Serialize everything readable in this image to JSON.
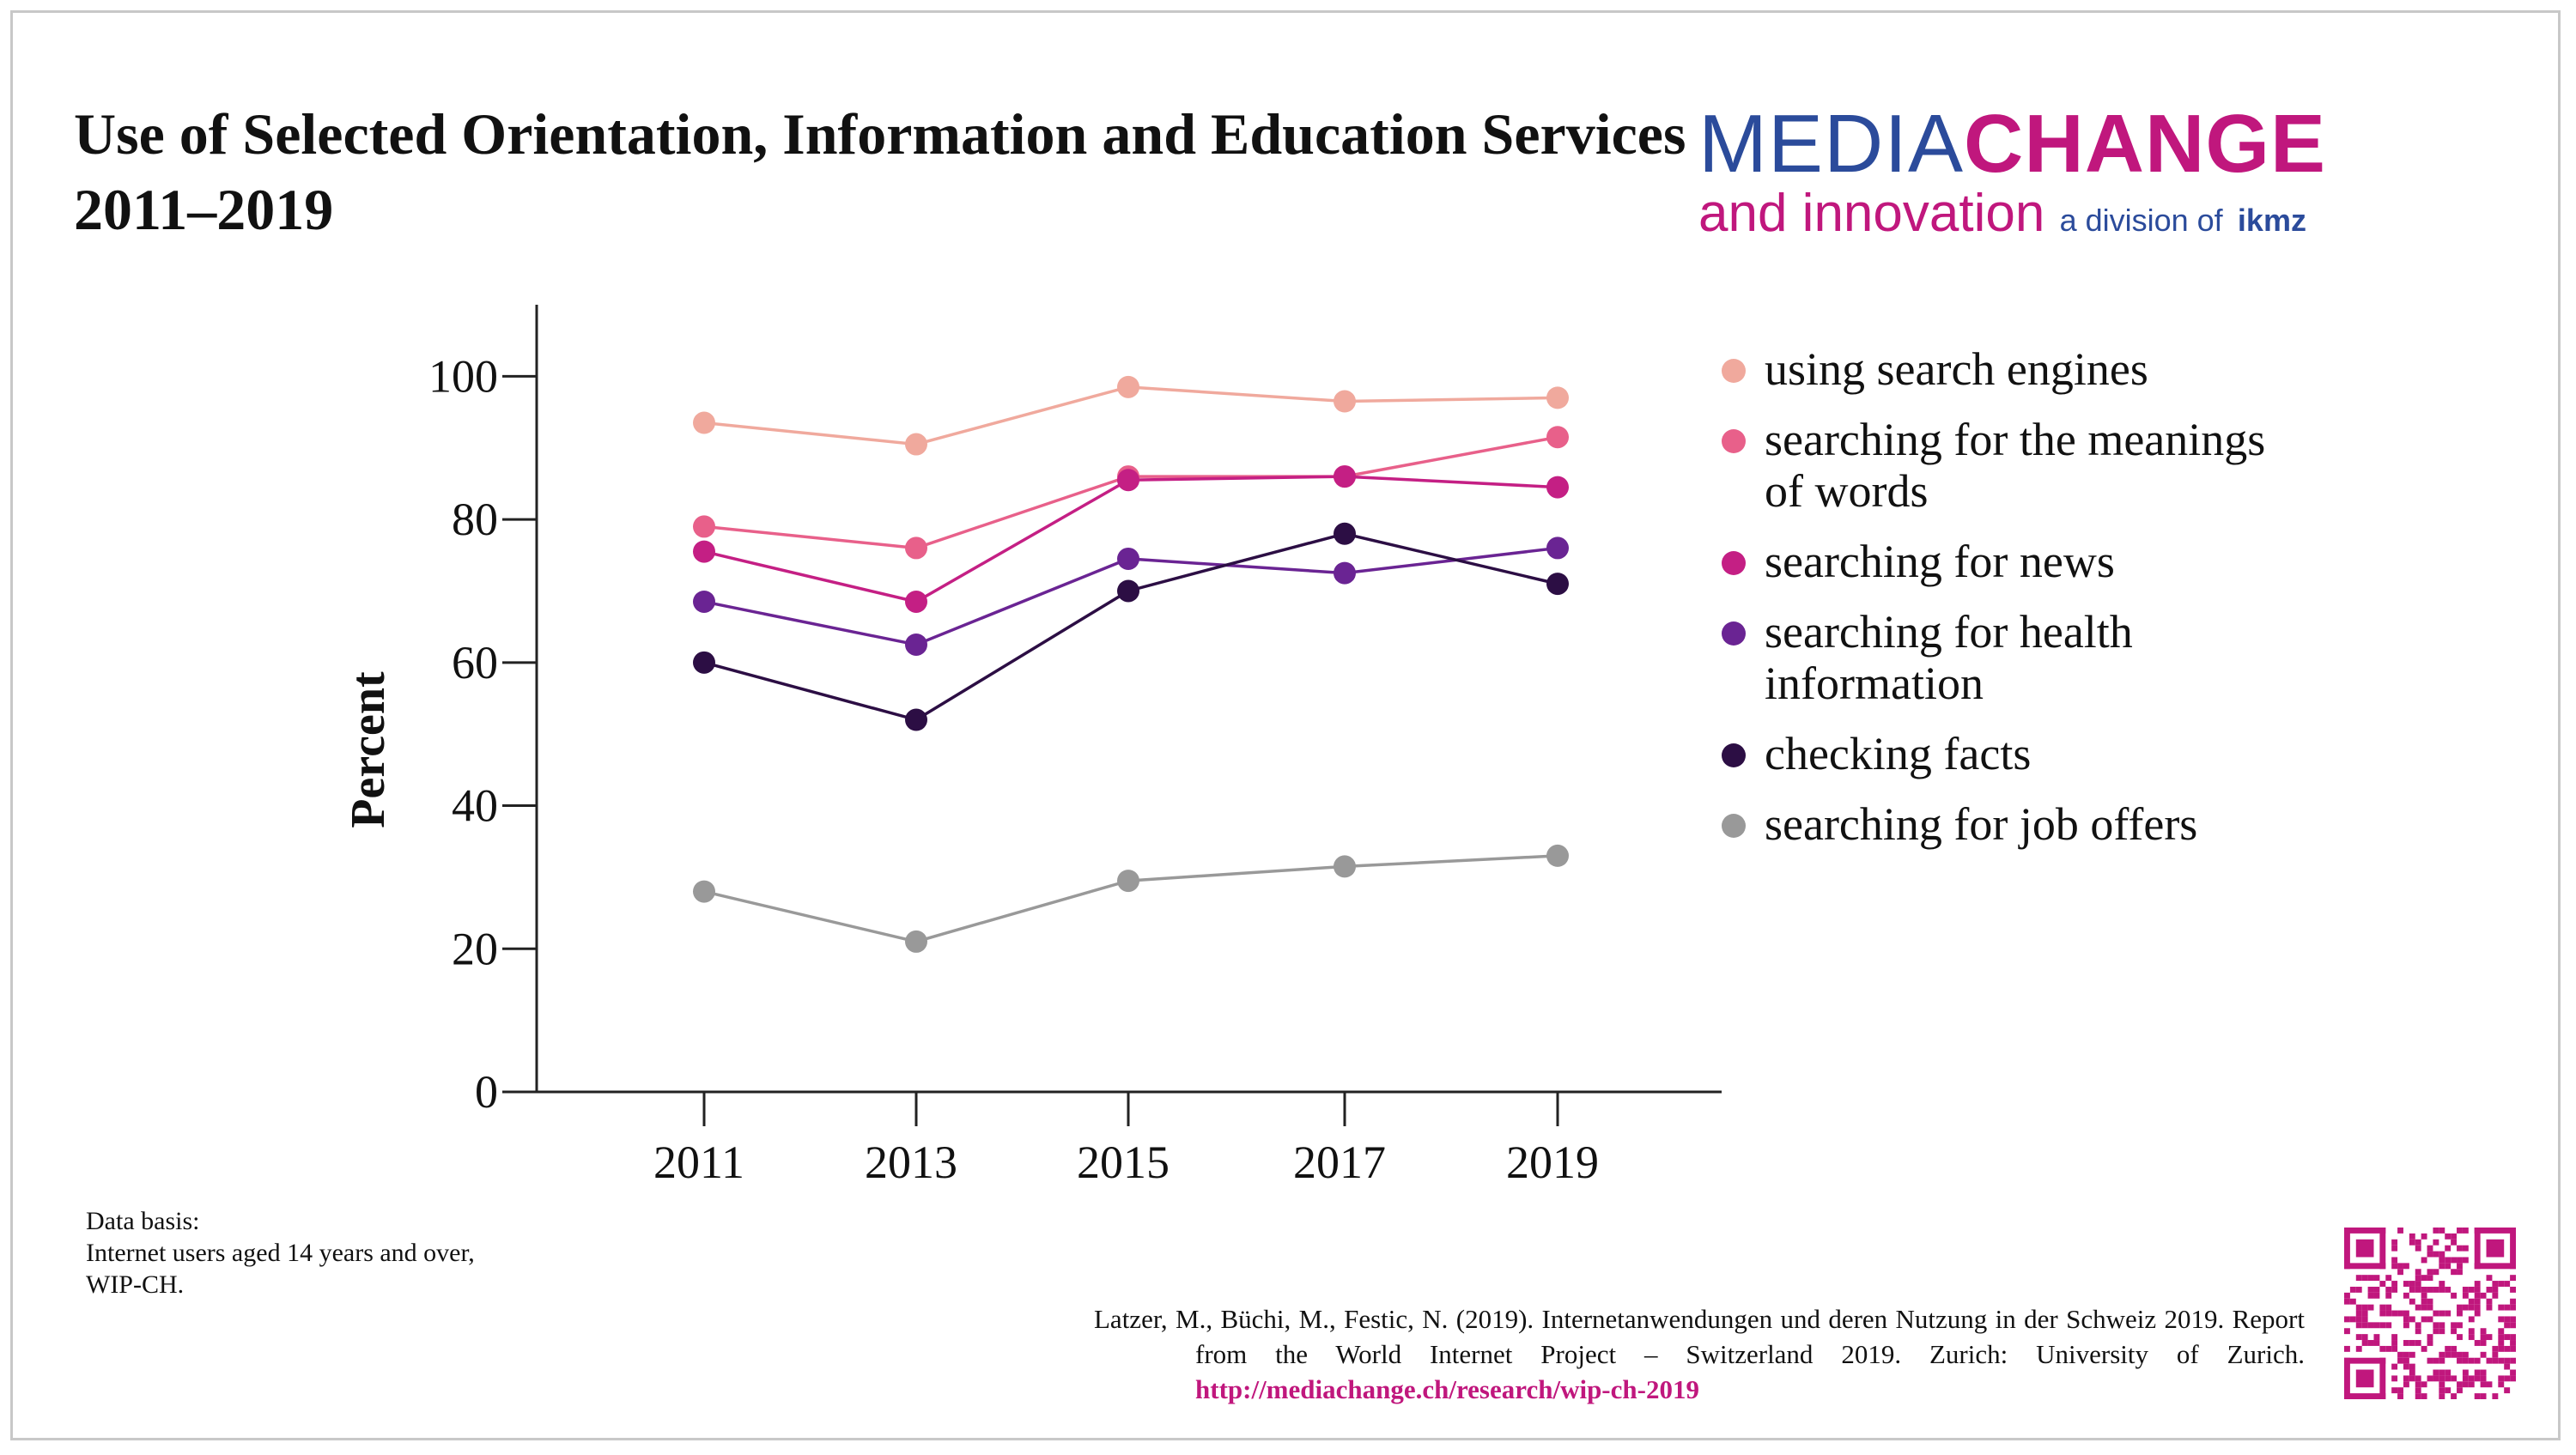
{
  "title": "Use of Selected Orientation, Information and Education Services 2011–2019",
  "logo": {
    "media": "MEDIA",
    "change": "CHANGE",
    "innovation": "and innovation",
    "division": "a division of",
    "ikmz": "ikmz"
  },
  "chart_data": {
    "type": "line",
    "x": [
      "2011",
      "2013",
      "2015",
      "2017",
      "2019"
    ],
    "ylabel": "Percent",
    "xlabel": "",
    "ylim": [
      0,
      110
    ],
    "yticks": [
      0,
      20,
      40,
      60,
      80,
      100
    ],
    "grid": false,
    "legend_position": "right",
    "series": [
      {
        "name": "using search engines",
        "color": "#f0a99d",
        "values": [
          93.5,
          90.5,
          98.5,
          96.5,
          97
        ]
      },
      {
        "name": "searching for the meanings of words",
        "color": "#e8608a",
        "values": [
          79,
          76,
          86,
          86,
          91.5
        ]
      },
      {
        "name": "searching for news",
        "color": "#c41f84",
        "values": [
          75.5,
          68.5,
          85.5,
          86,
          84.5
        ]
      },
      {
        "name": "searching for health information",
        "color": "#6a2493",
        "values": [
          68.5,
          62.5,
          74.5,
          72.5,
          76
        ]
      },
      {
        "name": "checking facts",
        "color": "#2c0e44",
        "values": [
          60,
          52,
          70,
          78,
          71
        ]
      },
      {
        "name": "searching for job offers",
        "color": "#999999",
        "values": [
          28,
          21,
          29.5,
          31.5,
          33
        ]
      }
    ]
  },
  "data_basis": "Data basis:\nInternet users aged 14 years and over, WIP-CH.",
  "citation": {
    "text": "Latzer, M., Büchi, M., Festic, N. (2019). Internetanwendungen und deren Nutzung in der Schweiz 2019. Report from the World Internet Project – Switzerland 2019. Zurich: University of Zurich. ",
    "link": "http://mediachange.ch/research/wip-ch-2019"
  }
}
